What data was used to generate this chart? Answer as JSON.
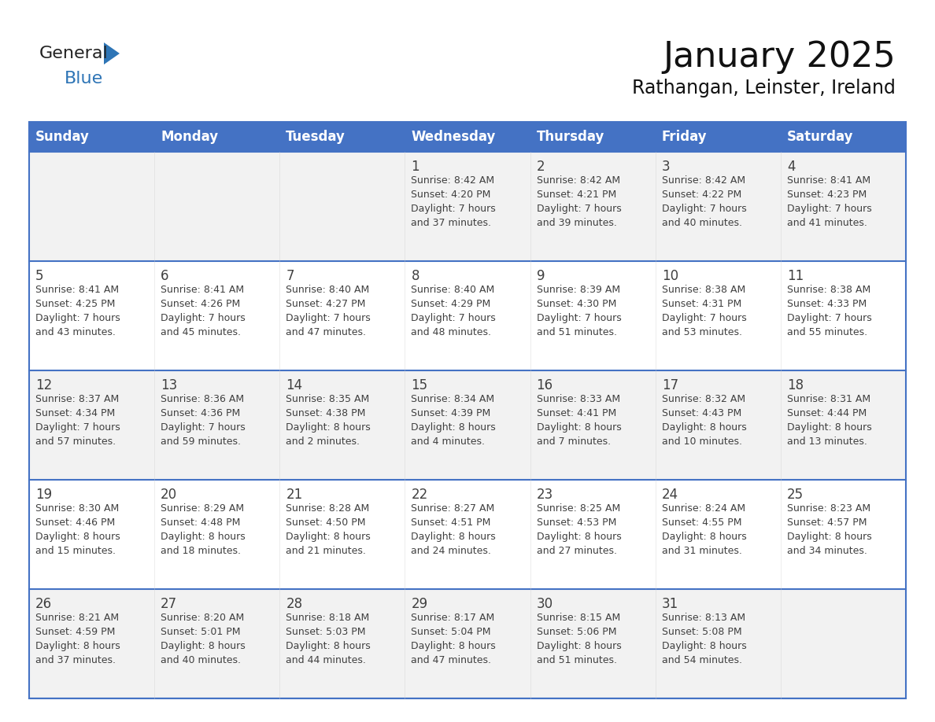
{
  "title": "January 2025",
  "subtitle": "Rathangan, Leinster, Ireland",
  "days_of_week": [
    "Sunday",
    "Monday",
    "Tuesday",
    "Wednesday",
    "Thursday",
    "Friday",
    "Saturday"
  ],
  "header_bg": "#4472C4",
  "header_text": "#FFFFFF",
  "row_bg_light": "#F2F2F2",
  "row_bg_white": "#FFFFFF",
  "border_color": "#4472C4",
  "text_color": "#404040",
  "logo_black": "#222222",
  "logo_blue": "#2E75B6",
  "triangle_color": "#2E75B6",
  "calendar_data": [
    [
      {
        "day": "",
        "info": ""
      },
      {
        "day": "",
        "info": ""
      },
      {
        "day": "",
        "info": ""
      },
      {
        "day": "1",
        "info": "Sunrise: 8:42 AM\nSunset: 4:20 PM\nDaylight: 7 hours\nand 37 minutes."
      },
      {
        "day": "2",
        "info": "Sunrise: 8:42 AM\nSunset: 4:21 PM\nDaylight: 7 hours\nand 39 minutes."
      },
      {
        "day": "3",
        "info": "Sunrise: 8:42 AM\nSunset: 4:22 PM\nDaylight: 7 hours\nand 40 minutes."
      },
      {
        "day": "4",
        "info": "Sunrise: 8:41 AM\nSunset: 4:23 PM\nDaylight: 7 hours\nand 41 minutes."
      }
    ],
    [
      {
        "day": "5",
        "info": "Sunrise: 8:41 AM\nSunset: 4:25 PM\nDaylight: 7 hours\nand 43 minutes."
      },
      {
        "day": "6",
        "info": "Sunrise: 8:41 AM\nSunset: 4:26 PM\nDaylight: 7 hours\nand 45 minutes."
      },
      {
        "day": "7",
        "info": "Sunrise: 8:40 AM\nSunset: 4:27 PM\nDaylight: 7 hours\nand 47 minutes."
      },
      {
        "day": "8",
        "info": "Sunrise: 8:40 AM\nSunset: 4:29 PM\nDaylight: 7 hours\nand 48 minutes."
      },
      {
        "day": "9",
        "info": "Sunrise: 8:39 AM\nSunset: 4:30 PM\nDaylight: 7 hours\nand 51 minutes."
      },
      {
        "day": "10",
        "info": "Sunrise: 8:38 AM\nSunset: 4:31 PM\nDaylight: 7 hours\nand 53 minutes."
      },
      {
        "day": "11",
        "info": "Sunrise: 8:38 AM\nSunset: 4:33 PM\nDaylight: 7 hours\nand 55 minutes."
      }
    ],
    [
      {
        "day": "12",
        "info": "Sunrise: 8:37 AM\nSunset: 4:34 PM\nDaylight: 7 hours\nand 57 minutes."
      },
      {
        "day": "13",
        "info": "Sunrise: 8:36 AM\nSunset: 4:36 PM\nDaylight: 7 hours\nand 59 minutes."
      },
      {
        "day": "14",
        "info": "Sunrise: 8:35 AM\nSunset: 4:38 PM\nDaylight: 8 hours\nand 2 minutes."
      },
      {
        "day": "15",
        "info": "Sunrise: 8:34 AM\nSunset: 4:39 PM\nDaylight: 8 hours\nand 4 minutes."
      },
      {
        "day": "16",
        "info": "Sunrise: 8:33 AM\nSunset: 4:41 PM\nDaylight: 8 hours\nand 7 minutes."
      },
      {
        "day": "17",
        "info": "Sunrise: 8:32 AM\nSunset: 4:43 PM\nDaylight: 8 hours\nand 10 minutes."
      },
      {
        "day": "18",
        "info": "Sunrise: 8:31 AM\nSunset: 4:44 PM\nDaylight: 8 hours\nand 13 minutes."
      }
    ],
    [
      {
        "day": "19",
        "info": "Sunrise: 8:30 AM\nSunset: 4:46 PM\nDaylight: 8 hours\nand 15 minutes."
      },
      {
        "day": "20",
        "info": "Sunrise: 8:29 AM\nSunset: 4:48 PM\nDaylight: 8 hours\nand 18 minutes."
      },
      {
        "day": "21",
        "info": "Sunrise: 8:28 AM\nSunset: 4:50 PM\nDaylight: 8 hours\nand 21 minutes."
      },
      {
        "day": "22",
        "info": "Sunrise: 8:27 AM\nSunset: 4:51 PM\nDaylight: 8 hours\nand 24 minutes."
      },
      {
        "day": "23",
        "info": "Sunrise: 8:25 AM\nSunset: 4:53 PM\nDaylight: 8 hours\nand 27 minutes."
      },
      {
        "day": "24",
        "info": "Sunrise: 8:24 AM\nSunset: 4:55 PM\nDaylight: 8 hours\nand 31 minutes."
      },
      {
        "day": "25",
        "info": "Sunrise: 8:23 AM\nSunset: 4:57 PM\nDaylight: 8 hours\nand 34 minutes."
      }
    ],
    [
      {
        "day": "26",
        "info": "Sunrise: 8:21 AM\nSunset: 4:59 PM\nDaylight: 8 hours\nand 37 minutes."
      },
      {
        "day": "27",
        "info": "Sunrise: 8:20 AM\nSunset: 5:01 PM\nDaylight: 8 hours\nand 40 minutes."
      },
      {
        "day": "28",
        "info": "Sunrise: 8:18 AM\nSunset: 5:03 PM\nDaylight: 8 hours\nand 44 minutes."
      },
      {
        "day": "29",
        "info": "Sunrise: 8:17 AM\nSunset: 5:04 PM\nDaylight: 8 hours\nand 47 minutes."
      },
      {
        "day": "30",
        "info": "Sunrise: 8:15 AM\nSunset: 5:06 PM\nDaylight: 8 hours\nand 51 minutes."
      },
      {
        "day": "31",
        "info": "Sunrise: 8:13 AM\nSunset: 5:08 PM\nDaylight: 8 hours\nand 54 minutes."
      },
      {
        "day": "",
        "info": ""
      }
    ]
  ]
}
